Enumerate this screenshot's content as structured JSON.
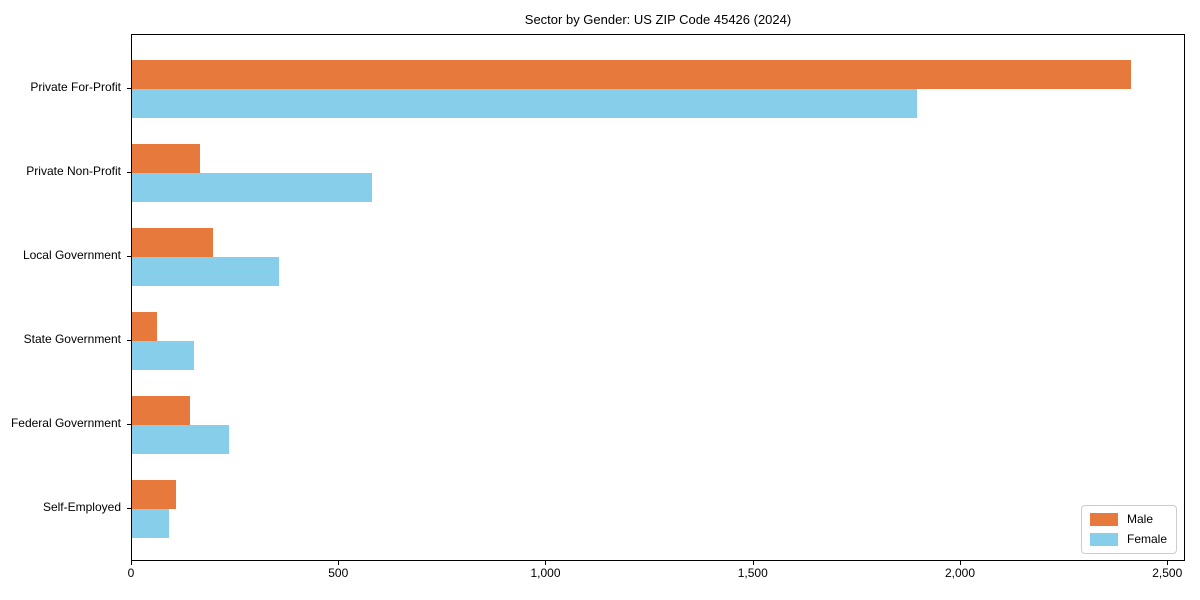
{
  "chart_data": {
    "type": "bar",
    "orientation": "horizontal",
    "title": "Sector by Gender: US ZIP Code 45426 (2024)",
    "categories": [
      "Private For-Profit",
      "Private Non-Profit",
      "Local Government",
      "State Government",
      "Federal Government",
      "Self-Employed"
    ],
    "series": [
      {
        "name": "Male",
        "color": "#e8793d",
        "values": [
          2410,
          165,
          195,
          60,
          140,
          105
        ]
      },
      {
        "name": "Female",
        "color": "#87ceeb",
        "values": [
          1895,
          580,
          355,
          150,
          235,
          90
        ]
      }
    ],
    "xticks": [
      0,
      500,
      1000,
      1500,
      2000,
      2500
    ],
    "xtick_labels": [
      "0",
      "500",
      "1,000",
      "1,500",
      "2,000",
      "2,500"
    ],
    "xlim": [
      0,
      2538
    ],
    "grid": false,
    "legend_position": "lower right",
    "plot_background": "#ffffff",
    "axis_color": "#000000"
  }
}
